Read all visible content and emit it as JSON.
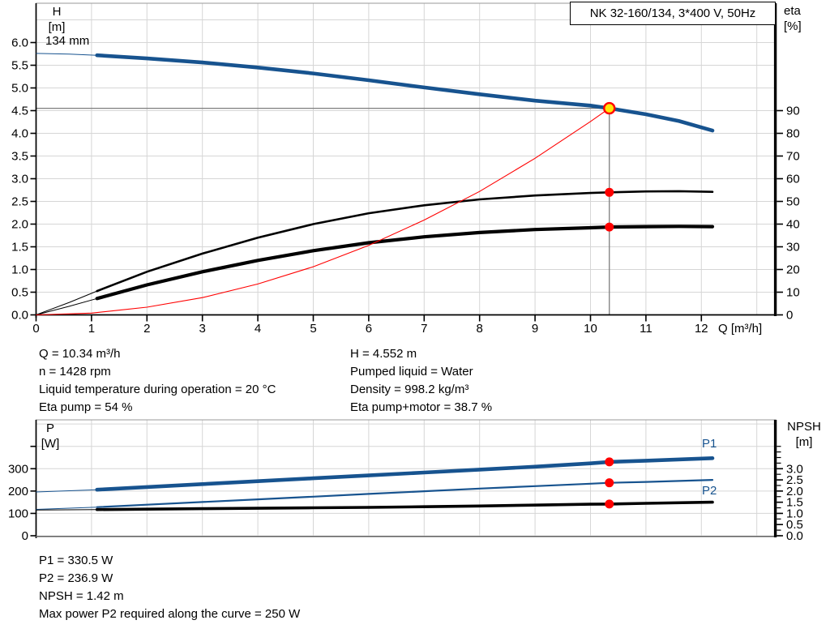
{
  "header": {
    "title_box": "NK 32-160/134, 3*400 V, 50Hz"
  },
  "top_chart_labels": {
    "y_left": "H",
    "y_left_unit": "[m]",
    "y_right": "eta",
    "y_right_unit": "[%]",
    "x_label": "Q [m³/h]",
    "impeller": "134 mm"
  },
  "bottom_chart_labels": {
    "y_left": "P",
    "y_left_unit": "[W]",
    "y_right": "NPSH",
    "y_right_unit": "[m]",
    "p1": "P1",
    "p2": "P2"
  },
  "info_panel": {
    "left_lines": [
      "Q = 10.34 m³/h",
      "n = 1428 rpm",
      "Liquid temperature during operation = 20 °C",
      "Eta pump = 54 %"
    ],
    "right_lines": [
      "H = 4.552 m",
      "Pumped liquid = Water",
      "Density = 998.2 kg/m³",
      "Eta pump+motor = 38.7 %"
    ]
  },
  "footer_panel": {
    "lines": [
      "P1 = 330.5 W",
      "P2 = 236.9 W",
      "NPSH = 1.42 m",
      "Max power P2 required along the curve = 250 W"
    ]
  },
  "colors": {
    "curve_blue": "#17538f",
    "curve_black": "#000000",
    "curve_red": "#ff0000",
    "marker_red": "#ff0000",
    "duty_yellow": "#ffe60a",
    "grid": "#d6d6d6",
    "duty_line": "#7d7d7d",
    "axis": "#000000",
    "soft_border": "#9a9a9a"
  },
  "chart_data": [
    {
      "type": "line",
      "title": "NK 32-160/134, 3*400 V, 50Hz",
      "xlabel": "Q [m³/h]",
      "ylabel_left": "H [m]",
      "ylabel_right": "eta [%]",
      "xlim": [
        0,
        13.35
      ],
      "ylim_left": [
        0,
        6.87
      ],
      "ylim_right": [
        0,
        98
      ],
      "xticks": [
        0,
        1,
        2,
        3,
        4,
        5,
        6,
        7,
        8,
        9,
        10,
        11,
        12
      ],
      "yticks_left": [
        0.0,
        0.5,
        1.0,
        1.5,
        2.0,
        2.5,
        3.0,
        3.5,
        4.0,
        4.5,
        5.0,
        5.5,
        6.0
      ],
      "yticks_right": [
        0,
        10,
        20,
        30,
        40,
        50,
        60,
        70,
        80,
        90
      ],
      "grid": true,
      "annotation": "134 mm",
      "duty_point": {
        "q": 10.34,
        "h": 4.552,
        "eta_pump": 54,
        "eta_pump_motor": 38.7
      },
      "series": [
        {
          "name": "head-curve",
          "axis": "left",
          "color_key": "curve_blue",
          "width": 4.6,
          "thin_until": 1.1,
          "points": [
            [
              0,
              5.76
            ],
            [
              0.6,
              5.745
            ],
            [
              1.1,
              5.72
            ],
            [
              2,
              5.65
            ],
            [
              3,
              5.56
            ],
            [
              4,
              5.45
            ],
            [
              5,
              5.32
            ],
            [
              6,
              5.17
            ],
            [
              7,
              5.01
            ],
            [
              8,
              4.86
            ],
            [
              9,
              4.72
            ],
            [
              10,
              4.61
            ],
            [
              10.34,
              4.552
            ],
            [
              11,
              4.42
            ],
            [
              11.6,
              4.27
            ],
            [
              12.2,
              4.06
            ]
          ]
        },
        {
          "name": "eta-pump-curve",
          "axis": "right",
          "color_key": "curve_black",
          "width": 2.6,
          "thin_until": 1.1,
          "points": [
            [
              0,
              0
            ],
            [
              0.6,
              5.5
            ],
            [
              1.1,
              10.5
            ],
            [
              2,
              19
            ],
            [
              3,
              27
            ],
            [
              4,
              34
            ],
            [
              5,
              40
            ],
            [
              6,
              44.8
            ],
            [
              7,
              48.3
            ],
            [
              8,
              50.9
            ],
            [
              9,
              52.6
            ],
            [
              10,
              53.7
            ],
            [
              10.34,
              54
            ],
            [
              11,
              54.4
            ],
            [
              11.6,
              54.5
            ],
            [
              12.2,
              54.2
            ]
          ]
        },
        {
          "name": "eta-pump-motor-curve",
          "axis": "right",
          "color_key": "curve_black",
          "width": 4.2,
          "thin_until": 1.1,
          "points": [
            [
              0,
              0
            ],
            [
              0.6,
              3.8
            ],
            [
              1.1,
              7.2
            ],
            [
              2,
              13.2
            ],
            [
              3,
              19
            ],
            [
              4,
              24
            ],
            [
              5,
              28.3
            ],
            [
              6,
              31.8
            ],
            [
              7,
              34.4
            ],
            [
              8,
              36.3
            ],
            [
              9,
              37.6
            ],
            [
              10,
              38.4
            ],
            [
              10.34,
              38.7
            ],
            [
              11,
              38.9
            ],
            [
              11.6,
              39
            ],
            [
              12.2,
              38.9
            ]
          ]
        },
        {
          "name": "system-curve",
          "axis": "left",
          "color_key": "curve_red",
          "width": 1.1,
          "points": [
            [
              0,
              0
            ],
            [
              1,
              0.04
            ],
            [
              2,
              0.17
            ],
            [
              3,
              0.38
            ],
            [
              4,
              0.68
            ],
            [
              5,
              1.06
            ],
            [
              6,
              1.53
            ],
            [
              7,
              2.09
            ],
            [
              8,
              2.72
            ],
            [
              9,
              3.45
            ],
            [
              10,
              4.26
            ],
            [
              10.34,
              4.552
            ]
          ]
        }
      ],
      "markers": [
        {
          "name": "duty-point-marker",
          "axis": "left",
          "q": 10.34,
          "value": 4.552,
          "r": 6.5,
          "fill_key": "duty_yellow",
          "stroke_key": "marker_red",
          "stroke_width": 2.4
        },
        {
          "name": "eta-pump-marker",
          "axis": "right",
          "q": 10.34,
          "value": 54,
          "r": 5.5,
          "fill_key": "marker_red"
        },
        {
          "name": "eta-pump-motor-marker",
          "axis": "right",
          "q": 10.34,
          "value": 38.7,
          "r": 5.5,
          "fill_key": "marker_red"
        }
      ]
    },
    {
      "type": "line",
      "title": "",
      "xlabel": "Q [m³/h]",
      "ylabel_left": "P [W]",
      "ylabel_right": "NPSH [m]",
      "xlim": [
        0,
        13.35
      ],
      "ylim_left": [
        0,
        520
      ],
      "ylim_right": [
        0,
        5.2
      ],
      "xticks": [],
      "yticks_left": [
        0,
        100,
        200,
        300
      ],
      "yticks_left_unlabeled": [
        400
      ],
      "yticks_right": [
        0.0,
        0.5,
        1.0,
        1.5,
        2.0,
        2.5,
        3.0
      ],
      "yticks_right_minor_step": 0.25,
      "yticks_right_minor_max": 4.0,
      "grid": true,
      "duty_point": {
        "q": 10.34,
        "p1": 330.5,
        "p2": 236.9,
        "npsh": 1.42
      },
      "series": [
        {
          "name": "p1-curve",
          "label": "P1",
          "axis": "left",
          "color_key": "curve_blue",
          "width": 4.6,
          "thin_until": 1.1,
          "points": [
            [
              0,
              196
            ],
            [
              1.1,
              206
            ],
            [
              2,
              218
            ],
            [
              3,
              231
            ],
            [
              4,
              244
            ],
            [
              5,
              257
            ],
            [
              6,
              270
            ],
            [
              7,
              283
            ],
            [
              8,
              296
            ],
            [
              9,
              309
            ],
            [
              10,
              324
            ],
            [
              10.34,
              330.5
            ],
            [
              11,
              336
            ],
            [
              12.2,
              347
            ]
          ]
        },
        {
          "name": "p2-curve",
          "label": "P2",
          "axis": "left",
          "color_key": "curve_blue",
          "width": 2.2,
          "thin_until": 1.1,
          "points": [
            [
              0,
              118
            ],
            [
              1.1,
              128
            ],
            [
              2,
              139
            ],
            [
              3,
              151
            ],
            [
              4,
              163
            ],
            [
              5,
              175
            ],
            [
              6,
              187
            ],
            [
              7,
              199
            ],
            [
              8,
              211
            ],
            [
              9,
              222
            ],
            [
              10,
              233
            ],
            [
              10.34,
              236.9
            ],
            [
              11,
              241
            ],
            [
              12.2,
              250
            ]
          ]
        },
        {
          "name": "npsh-curve",
          "label": "NPSH",
          "axis": "right",
          "color_key": "curve_black",
          "width": 3.6,
          "thin_until": 1.1,
          "points": [
            [
              0,
              1.15
            ],
            [
              1.1,
              1.17
            ],
            [
              2,
              1.19
            ],
            [
              3,
              1.21
            ],
            [
              4,
              1.23
            ],
            [
              5,
              1.25
            ],
            [
              6,
              1.27
            ],
            [
              7,
              1.3
            ],
            [
              8,
              1.33
            ],
            [
              9,
              1.37
            ],
            [
              10,
              1.41
            ],
            [
              10.34,
              1.42
            ],
            [
              11,
              1.45
            ],
            [
              12.2,
              1.5
            ]
          ]
        }
      ],
      "markers": [
        {
          "name": "p1-marker",
          "axis": "left",
          "q": 10.34,
          "value": 330.5,
          "r": 5.5,
          "fill_key": "marker_red"
        },
        {
          "name": "p2-marker",
          "axis": "left",
          "q": 10.34,
          "value": 236.9,
          "r": 5.5,
          "fill_key": "marker_red"
        },
        {
          "name": "npsh-marker",
          "axis": "right",
          "q": 10.34,
          "value": 1.42,
          "r": 5.5,
          "fill_key": "marker_red"
        }
      ]
    }
  ]
}
